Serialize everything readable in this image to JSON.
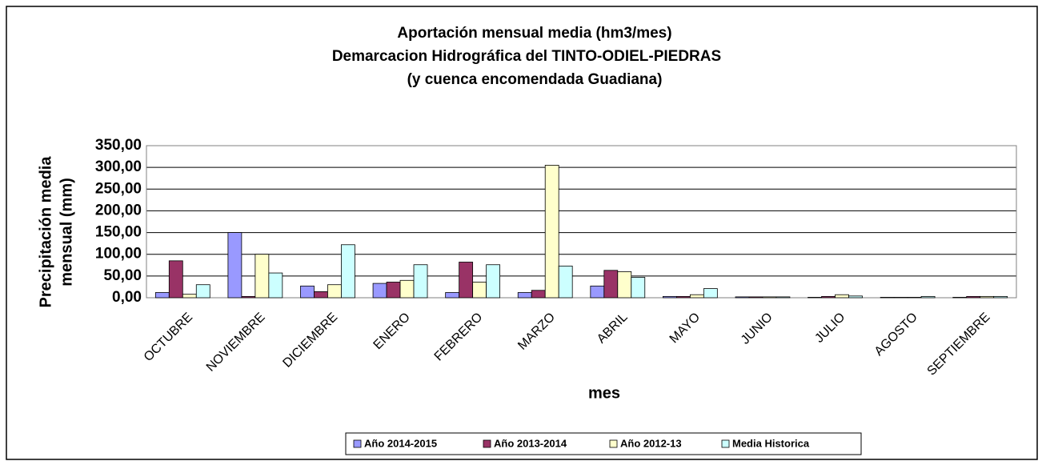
{
  "chart_data": {
    "type": "bar",
    "title": [
      "Aportación mensual media (hm3/mes)",
      "Demarcacion Hidrográfica del TINTO-ODIEL-PIEDRAS",
      "(y cuenca encomendada Guadiana)"
    ],
    "x_label": "mes",
    "y_label": [
      "Precipitación media",
      "mensual (mm)"
    ],
    "categories": [
      "OCTUBRE",
      "NOVIEMBRE",
      "DICIEMBRE",
      "ENERO",
      "FEBRERO",
      "MARZO",
      "ABRIL",
      "MAYO",
      "JUNIO",
      "JULIO",
      "AGOSTO",
      "SEPTIEMBRE"
    ],
    "series": [
      {
        "name": "Año 2014-2015",
        "color": "#9999ff",
        "values": [
          12,
          150,
          27,
          33,
          12,
          12,
          27,
          3,
          2,
          1,
          1,
          1
        ]
      },
      {
        "name": "Año 2013-2014",
        "color": "#993366",
        "values": [
          85,
          3,
          14,
          36,
          82,
          17,
          63,
          3,
          2,
          3,
          1,
          3
        ]
      },
      {
        "name": "Año 2012-13",
        "color": "#ffffcc",
        "values": [
          8,
          100,
          30,
          40,
          36,
          305,
          60,
          7,
          2,
          7,
          1,
          3
        ]
      },
      {
        "name": "Media Historica",
        "color": "#ccffff",
        "values": [
          30,
          57,
          122,
          76,
          76,
          73,
          47,
          21,
          2,
          4,
          3,
          3
        ]
      }
    ],
    "ylim": [
      0,
      350
    ],
    "yticks": [
      {
        "value": 0,
        "label": "0,00"
      },
      {
        "value": 50,
        "label": "50,00"
      },
      {
        "value": 100,
        "label": "100,00"
      },
      {
        "value": 150,
        "label": "150,00"
      },
      {
        "value": 200,
        "label": "200,00"
      },
      {
        "value": 250,
        "label": "250,00"
      },
      {
        "value": 300,
        "label": "300,00"
      },
      {
        "value": 350,
        "label": "350,00"
      }
    ],
    "grid": true,
    "legend": "bottom"
  }
}
